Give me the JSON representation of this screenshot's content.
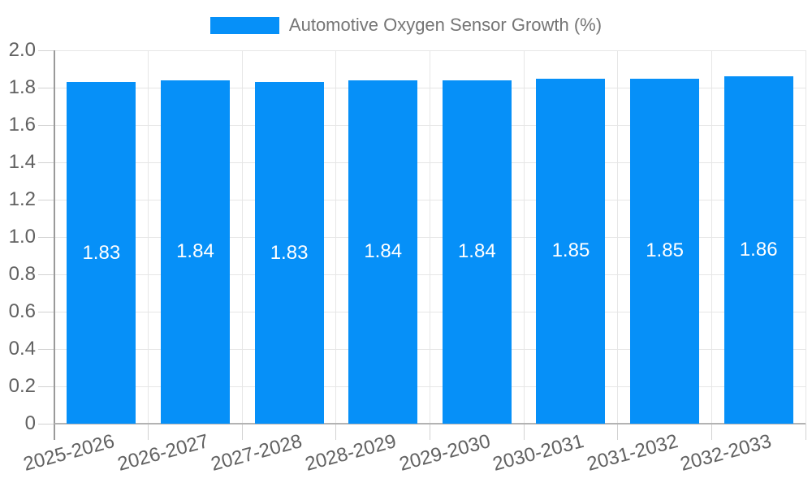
{
  "legend": {
    "label": "Automotive Oxygen Sensor Growth (%)"
  },
  "chart_data": {
    "type": "bar",
    "title": "Automotive Oxygen Sensor Growth (%)",
    "categories": [
      "2025-2026",
      "2026-2027",
      "2027-2028",
      "2028-2029",
      "2029-2030",
      "2030-2031",
      "2031-2032",
      "2032-2033"
    ],
    "values": [
      1.83,
      1.84,
      1.83,
      1.84,
      1.84,
      1.85,
      1.85,
      1.86
    ],
    "bar_labels": [
      "1.83",
      "1.84",
      "1.83",
      "1.84",
      "1.84",
      "1.85",
      "1.85",
      "1.86"
    ],
    "xlabel": "",
    "ylabel": "",
    "ylim": [
      0,
      2.0
    ],
    "ytick_labels": [
      "0",
      "0.2",
      "0.4",
      "0.6",
      "0.8",
      "1.0",
      "1.2",
      "1.4",
      "1.6",
      "1.8",
      "2.0"
    ],
    "grid": true,
    "legend_position": "top-center",
    "x_label_rotation_deg": -15,
    "bar_color": "#0690F8",
    "value_label_color": "#ffffff",
    "axis_label_color": "#616161",
    "legend_text_color": "#757575",
    "gridline_color": "#e6e6e6",
    "tick_color": "#d2d2d2",
    "y_axis_line_color": "#9a9a9a",
    "x_axis_line_color": "#b3b3b3"
  }
}
